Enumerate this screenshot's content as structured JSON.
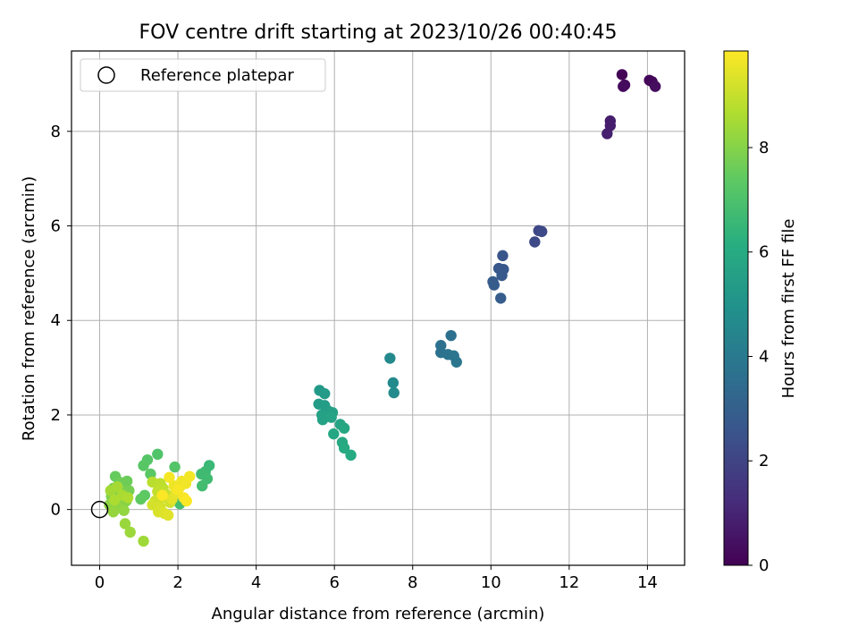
{
  "chart_data": {
    "type": "scatter",
    "title": "FOV centre drift starting at 2023/10/26 00:40:45",
    "xlabel": "Angular distance from reference (arcmin)",
    "ylabel": "Rotation from reference (arcmin)",
    "xlim": [
      -0.72,
      14.95
    ],
    "ylim": [
      -1.18,
      9.7
    ],
    "xticks": [
      0,
      2,
      4,
      6,
      8,
      10,
      12,
      14
    ],
    "yticks": [
      0,
      2,
      4,
      6,
      8
    ],
    "grid": true,
    "legend": {
      "placement": "top-left",
      "entries": [
        "Reference platepar"
      ]
    },
    "reference_point": {
      "name": "Reference platepar",
      "x": 0,
      "y": 0
    },
    "colorbar": {
      "label": "Hours from first FF file",
      "colormap": "viridis",
      "range": [
        0,
        9.85
      ],
      "ticks": [
        0,
        2,
        4,
        6,
        8
      ]
    },
    "series": [
      {
        "columns": [
          "x",
          "y",
          "hours"
        ],
        "points": [
          [
            13.35,
            9.2,
            0.1
          ],
          [
            14.05,
            9.08,
            0.15
          ],
          [
            14.12,
            9.05,
            0.2
          ],
          [
            13.38,
            8.95,
            0.25
          ],
          [
            13.42,
            8.98,
            0.3
          ],
          [
            14.2,
            8.95,
            0.35
          ],
          [
            13.05,
            8.22,
            0.75
          ],
          [
            13.05,
            8.12,
            0.8
          ],
          [
            12.97,
            7.95,
            0.85
          ],
          [
            11.22,
            5.9,
            2.1
          ],
          [
            11.3,
            5.88,
            2.15
          ],
          [
            11.12,
            5.66,
            2.2
          ],
          [
            10.3,
            5.37,
            2.6
          ],
          [
            10.2,
            5.1,
            2.65
          ],
          [
            10.32,
            5.08,
            2.7
          ],
          [
            10.28,
            4.95,
            2.75
          ],
          [
            10.05,
            4.82,
            2.8
          ],
          [
            10.08,
            4.75,
            2.85
          ],
          [
            10.25,
            4.47,
            2.9
          ],
          [
            8.98,
            3.68,
            3.6
          ],
          [
            8.72,
            3.47,
            3.65
          ],
          [
            8.72,
            3.32,
            3.7
          ],
          [
            8.9,
            3.28,
            3.75
          ],
          [
            9.05,
            3.25,
            3.8
          ],
          [
            9.12,
            3.12,
            3.85
          ],
          [
            7.42,
            3.2,
            4.6
          ],
          [
            7.5,
            2.68,
            4.65
          ],
          [
            7.52,
            2.47,
            4.7
          ],
          [
            5.62,
            2.52,
            5.3
          ],
          [
            5.75,
            2.45,
            5.35
          ],
          [
            5.6,
            2.23,
            5.4
          ],
          [
            5.75,
            2.2,
            5.45
          ],
          [
            5.85,
            2.08,
            5.5
          ],
          [
            5.95,
            2.05,
            5.55
          ],
          [
            5.68,
            2.0,
            5.6
          ],
          [
            5.7,
            1.9,
            5.65
          ],
          [
            5.92,
            1.95,
            5.7
          ],
          [
            6.15,
            1.8,
            5.75
          ],
          [
            6.25,
            1.72,
            5.8
          ],
          [
            5.98,
            1.6,
            5.85
          ],
          [
            6.2,
            1.42,
            5.9
          ],
          [
            6.25,
            1.3,
            5.95
          ],
          [
            6.42,
            1.15,
            6.0
          ],
          [
            2.8,
            0.93,
            6.6
          ],
          [
            2.7,
            0.8,
            6.65
          ],
          [
            2.6,
            0.75,
            6.7
          ],
          [
            2.75,
            0.65,
            6.75
          ],
          [
            2.62,
            0.5,
            6.8
          ],
          [
            2.05,
            0.12,
            6.85
          ],
          [
            1.48,
            1.17,
            7.1
          ],
          [
            1.92,
            0.9,
            7.15
          ],
          [
            1.22,
            1.05,
            7.2
          ],
          [
            1.12,
            0.93,
            7.25
          ],
          [
            1.3,
            0.75,
            7.3
          ],
          [
            1.15,
            0.3,
            7.35
          ],
          [
            1.05,
            0.22,
            7.4
          ],
          [
            0.4,
            0.7,
            7.5
          ],
          [
            0.5,
            0.58,
            7.55
          ],
          [
            0.7,
            0.6,
            7.6
          ],
          [
            0.55,
            0.55,
            7.65
          ],
          [
            0.35,
            0.45,
            7.7
          ],
          [
            0.75,
            0.4,
            7.75
          ],
          [
            0.62,
            0.38,
            7.8
          ],
          [
            0.45,
            0.35,
            7.85
          ],
          [
            0.3,
            0.28,
            7.9
          ],
          [
            0.55,
            0.22,
            7.95
          ],
          [
            0.68,
            0.18,
            8.0
          ],
          [
            0.4,
            0.12,
            8.05
          ],
          [
            0.25,
            0.1,
            8.1
          ],
          [
            0.5,
            0.05,
            8.15
          ],
          [
            0.62,
            -0.02,
            8.2
          ],
          [
            0.35,
            -0.05,
            8.25
          ],
          [
            0.65,
            -0.3,
            8.3
          ],
          [
            0.78,
            -0.48,
            8.35
          ],
          [
            1.12,
            -0.67,
            8.4
          ],
          [
            0.28,
            0.4,
            8.45
          ],
          [
            0.45,
            0.48,
            8.5
          ],
          [
            0.58,
            0.3,
            8.55
          ],
          [
            0.38,
            0.2,
            8.6
          ],
          [
            0.72,
            0.25,
            8.65
          ],
          [
            1.35,
            0.58,
            8.8
          ],
          [
            1.55,
            0.55,
            8.85
          ],
          [
            1.62,
            0.45,
            8.9
          ],
          [
            1.48,
            0.38,
            8.95
          ],
          [
            1.7,
            0.32,
            9.0
          ],
          [
            1.58,
            0.25,
            9.05
          ],
          [
            1.42,
            0.18,
            9.1
          ],
          [
            1.8,
            0.15,
            9.15
          ],
          [
            1.35,
            0.1,
            9.2
          ],
          [
            1.55,
            0.05,
            9.25
          ],
          [
            1.5,
            -0.05,
            9.3
          ],
          [
            1.65,
            -0.08,
            9.35
          ],
          [
            1.75,
            -0.12,
            9.4
          ],
          [
            1.85,
            0.22,
            9.45
          ],
          [
            1.95,
            0.35,
            9.5
          ],
          [
            2.05,
            0.48,
            9.55
          ],
          [
            1.9,
            0.5,
            9.6
          ],
          [
            2.1,
            0.6,
            9.62
          ],
          [
            2.2,
            0.55,
            9.65
          ],
          [
            2.3,
            0.7,
            9.7
          ],
          [
            1.78,
            0.68,
            9.72
          ],
          [
            2.0,
            0.42,
            9.75
          ],
          [
            2.15,
            0.25,
            9.78
          ],
          [
            2.22,
            0.18,
            9.8
          ],
          [
            1.6,
            0.3,
            9.82
          ]
        ]
      }
    ]
  }
}
